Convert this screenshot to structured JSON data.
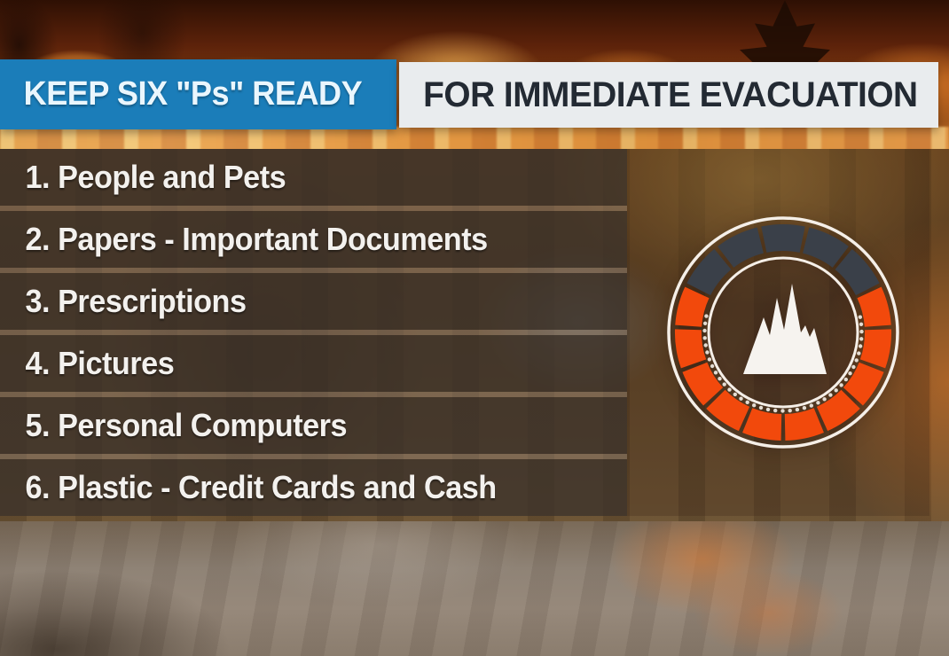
{
  "header": {
    "left_title": "KEEP SIX \"Ps\" READY",
    "right_title": "FOR IMMEDIATE EVACUATION",
    "left_bg_color": "#1b7db9",
    "right_bg_color": "#e9ecee"
  },
  "checklist": {
    "items": [
      "1. People and Pets",
      "2. Papers - Important Documents",
      "3. Prescriptions",
      "4. Pictures",
      "5. Personal Computers",
      "6. Plastic - Credit Cards and Cash"
    ]
  },
  "badge": {
    "icon": "wildfire-mountain-icon",
    "ring_orange": "#f2490c",
    "ring_dark": "#3a4049",
    "ring_white": "#f5efe8",
    "mountain_color": "#f6f3ef"
  }
}
